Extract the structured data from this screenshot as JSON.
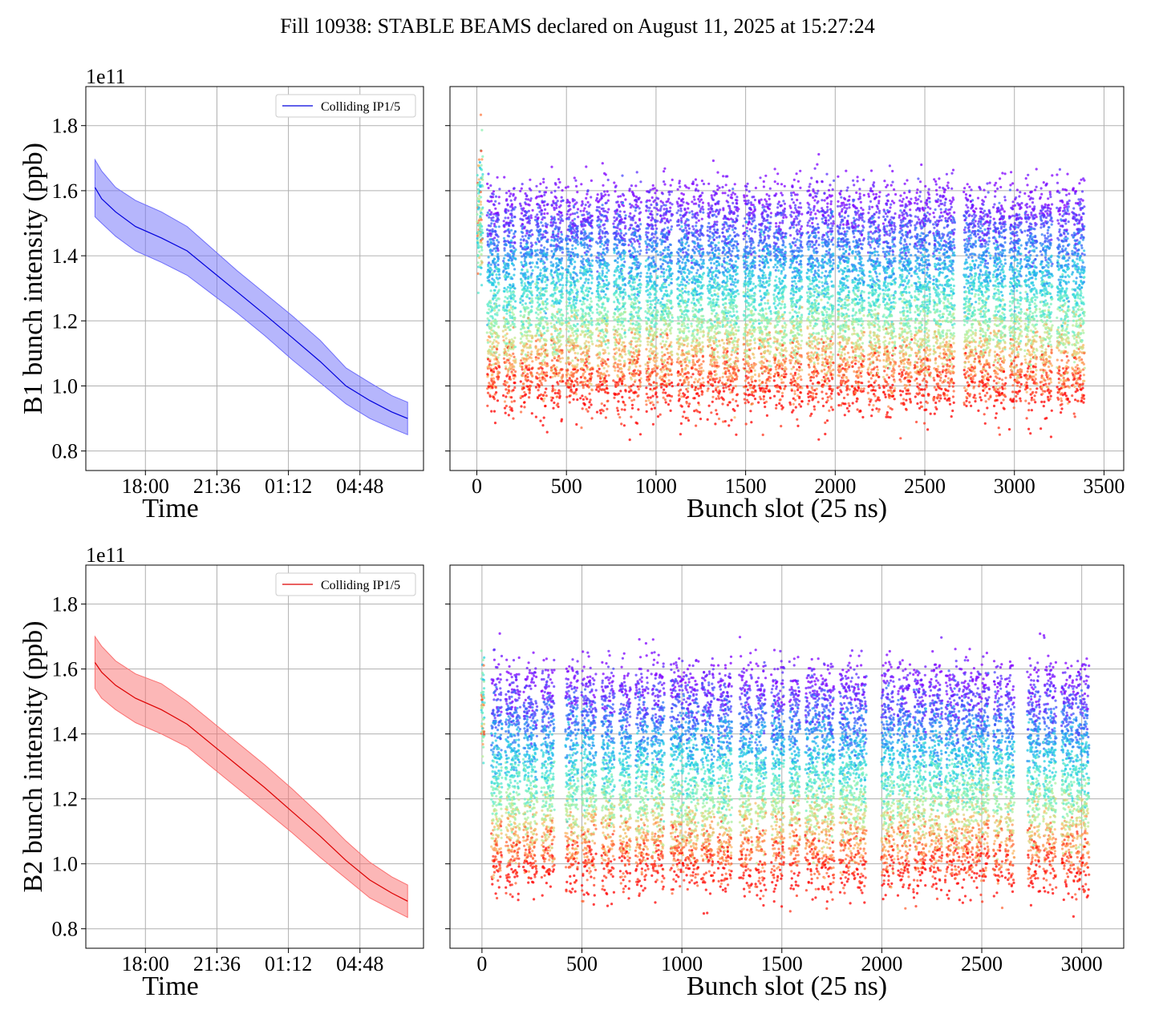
{
  "figure_title": "Fill 10938: STABLE BEAMS declared on August 11, 2025 at 15:27:24",
  "colors": {
    "b1_line": "#0000dd",
    "b1_band": "#6e6efa",
    "b2_line": "#dd0000",
    "b2_band": "#fa7070",
    "grid": "#b0b0b0"
  },
  "chart_data": [
    {
      "type": "line",
      "id": "b1-time",
      "title": "",
      "xlabel": "Time",
      "ylabel": "B1 bunch intensity (ppb)",
      "offset_text": "1e11",
      "x_tick_labels": [
        "18:00",
        "21:36",
        "01:12",
        "04:48"
      ],
      "x_ticks_hours": [
        18.0,
        21.6,
        25.2,
        28.8
      ],
      "xlim_hours": [
        15.0,
        32.0
      ],
      "ylim": [
        0.74,
        1.92
      ],
      "y_ticks": [
        0.8,
        1.0,
        1.2,
        1.4,
        1.6,
        1.8
      ],
      "y_tick_labels": [
        "0.8",
        "1.0",
        "1.2",
        "1.4",
        "1.6",
        "1.8"
      ],
      "grid": true,
      "legend": {
        "label": "Colliding IP1/5",
        "position": "top-right"
      },
      "series": [
        {
          "name": "Colliding IP1/5",
          "x_hours": [
            15.46,
            15.8,
            16.5,
            17.5,
            18.8,
            20.1,
            21.3,
            22.6,
            24.0,
            25.4,
            26.8,
            28.1,
            29.3,
            30.4,
            31.2
          ],
          "mean": [
            1.61,
            1.575,
            1.535,
            1.49,
            1.455,
            1.415,
            1.355,
            1.29,
            1.22,
            1.148,
            1.075,
            1.0,
            0.955,
            0.92,
            0.9
          ],
          "lower": [
            1.52,
            1.5,
            1.46,
            1.415,
            1.38,
            1.34,
            1.285,
            1.225,
            1.155,
            1.08,
            1.01,
            0.945,
            0.9,
            0.87,
            0.85
          ],
          "upper": [
            1.695,
            1.66,
            1.61,
            1.57,
            1.535,
            1.49,
            1.425,
            1.355,
            1.285,
            1.215,
            1.14,
            1.055,
            1.01,
            0.97,
            0.95
          ]
        }
      ]
    },
    {
      "type": "scatter",
      "id": "b1-slots",
      "title": "",
      "xlabel": "Bunch slot (25 ns)",
      "ylabel": "",
      "xlim": [
        -150,
        3610
      ],
      "ylim": [
        0.74,
        1.92
      ],
      "x_ticks": [
        0,
        500,
        1000,
        1500,
        2000,
        2500,
        3000,
        3500
      ],
      "x_tick_labels": [
        "0",
        "500",
        "1000",
        "1500",
        "2000",
        "2500",
        "3000",
        "3500"
      ],
      "y_ticks": [
        0.8,
        1.0,
        1.2,
        1.4,
        1.6,
        1.8
      ],
      "grid": true,
      "colormap": "rainbow (early time = violet, late time = red)",
      "intensity_range": [
        0.8,
        1.86
      ],
      "pilot_train": {
        "range": [
          5,
          30
        ],
        "intensity": [
          1.36,
          1.66
        ]
      },
      "trains": [
        [
          60,
          125
        ],
        [
          150,
          215
        ],
        [
          245,
          310
        ],
        [
          330,
          395
        ],
        [
          415,
          480
        ],
        [
          500,
          565
        ],
        [
          580,
          645
        ],
        [
          670,
          735
        ],
        [
          765,
          830
        ],
        [
          850,
          915
        ],
        [
          945,
          1010
        ],
        [
          1025,
          1090
        ],
        [
          1120,
          1185
        ],
        [
          1200,
          1265
        ],
        [
          1290,
          1355
        ],
        [
          1370,
          1460
        ],
        [
          1490,
          1555
        ],
        [
          1575,
          1640
        ],
        [
          1660,
          1725
        ],
        [
          1750,
          1815
        ],
        [
          1845,
          1910
        ],
        [
          1925,
          1990
        ],
        [
          2015,
          2080
        ],
        [
          2095,
          2160
        ],
        [
          2185,
          2250
        ],
        [
          2270,
          2335
        ],
        [
          2360,
          2425
        ],
        [
          2445,
          2530
        ],
        [
          2550,
          2590
        ],
        [
          2600,
          2665
        ],
        [
          2720,
          2785
        ],
        [
          2800,
          2865
        ],
        [
          2885,
          2950
        ],
        [
          2975,
          3040
        ],
        [
          3060,
          3125
        ],
        [
          3145,
          3210
        ],
        [
          3240,
          3305
        ],
        [
          3325,
          3390
        ]
      ]
    },
    {
      "type": "line",
      "id": "b2-time",
      "title": "",
      "xlabel": "Time",
      "ylabel": "B2 bunch intensity (ppb)",
      "offset_text": "1e11",
      "x_tick_labels": [
        "18:00",
        "21:36",
        "01:12",
        "04:48"
      ],
      "x_ticks_hours": [
        18.0,
        21.6,
        25.2,
        28.8
      ],
      "xlim_hours": [
        15.0,
        32.0
      ],
      "ylim": [
        0.74,
        1.92
      ],
      "y_ticks": [
        0.8,
        1.0,
        1.2,
        1.4,
        1.6,
        1.8
      ],
      "y_tick_labels": [
        "0.8",
        "1.0",
        "1.2",
        "1.4",
        "1.6",
        "1.8"
      ],
      "grid": true,
      "legend": {
        "label": "Colliding IP1/5",
        "position": "top-right"
      },
      "series": [
        {
          "name": "Colliding IP1/5",
          "x_hours": [
            15.46,
            15.8,
            16.5,
            17.5,
            18.8,
            20.1,
            21.3,
            22.6,
            24.0,
            25.4,
            26.8,
            28.1,
            29.3,
            30.4,
            31.2
          ],
          "mean": [
            1.62,
            1.59,
            1.55,
            1.51,
            1.475,
            1.43,
            1.37,
            1.305,
            1.235,
            1.16,
            1.085,
            1.01,
            0.95,
            0.91,
            0.885
          ],
          "lower": [
            1.54,
            1.51,
            1.475,
            1.435,
            1.4,
            1.36,
            1.3,
            1.235,
            1.165,
            1.095,
            1.02,
            0.955,
            0.895,
            0.86,
            0.835
          ],
          "upper": [
            1.7,
            1.67,
            1.625,
            1.585,
            1.555,
            1.5,
            1.44,
            1.375,
            1.305,
            1.23,
            1.15,
            1.07,
            1.005,
            0.96,
            0.935
          ]
        }
      ]
    },
    {
      "type": "scatter",
      "id": "b2-slots",
      "title": "",
      "xlabel": "Bunch slot (25 ns)",
      "ylabel": "",
      "xlim": [
        -160,
        3210
      ],
      "ylim": [
        0.74,
        1.92
      ],
      "x_ticks": [
        0,
        500,
        1000,
        1500,
        2000,
        2500,
        3000
      ],
      "x_tick_labels": [
        "0",
        "500",
        "1000",
        "1500",
        "2000",
        "2500",
        "3000"
      ],
      "y_ticks": [
        0.8,
        1.0,
        1.2,
        1.4,
        1.6,
        1.8
      ],
      "grid": true,
      "colormap": "rainbow (early time = violet, late time = red)",
      "intensity_range": [
        0.79,
        1.84
      ],
      "pilot_train": {
        "range": [
          0,
          12
        ],
        "intensity": [
          1.39,
          1.6
        ]
      },
      "trains": [
        [
          50,
          100
        ],
        [
          120,
          190
        ],
        [
          210,
          275
        ],
        [
          300,
          360
        ],
        [
          420,
          480
        ],
        [
          500,
          570
        ],
        [
          600,
          660
        ],
        [
          690,
          745
        ],
        [
          770,
          830
        ],
        [
          850,
          910
        ],
        [
          945,
          1010
        ],
        [
          1020,
          1080
        ],
        [
          1100,
          1160
        ],
        [
          1180,
          1250
        ],
        [
          1290,
          1350
        ],
        [
          1370,
          1420
        ],
        [
          1450,
          1510
        ],
        [
          1540,
          1590
        ],
        [
          1620,
          1690
        ],
        [
          1700,
          1760
        ],
        [
          1790,
          1850
        ],
        [
          1860,
          1920
        ],
        [
          2000,
          2060
        ],
        [
          2080,
          2140
        ],
        [
          2160,
          2220
        ],
        [
          2240,
          2300
        ],
        [
          2320,
          2390
        ],
        [
          2400,
          2460
        ],
        [
          2470,
          2535
        ],
        [
          2560,
          2600
        ],
        [
          2620,
          2660
        ],
        [
          2730,
          2790
        ],
        [
          2810,
          2870
        ],
        [
          2900,
          2960
        ],
        [
          2970,
          3035
        ]
      ]
    }
  ]
}
